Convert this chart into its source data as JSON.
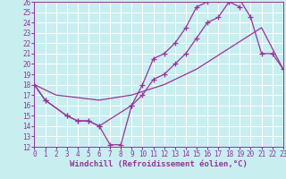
{
  "xlabel": "Windchill (Refroidissement éolien,°C)",
  "bg_color": "#c8eef0",
  "line_color": "#993399",
  "grid_color": "#ffffff",
  "xlim": [
    0,
    23
  ],
  "ylim": [
    12,
    26
  ],
  "xticks": [
    0,
    1,
    2,
    3,
    4,
    5,
    6,
    7,
    8,
    9,
    10,
    11,
    12,
    13,
    14,
    15,
    16,
    17,
    18,
    19,
    20,
    21,
    22,
    23
  ],
  "yticks": [
    12,
    13,
    14,
    15,
    16,
    17,
    18,
    19,
    20,
    21,
    22,
    23,
    24,
    25,
    26
  ],
  "curve1_x": [
    0,
    1,
    3,
    4,
    5,
    6,
    7,
    8,
    9,
    10,
    11,
    12,
    13,
    14,
    15,
    16,
    17,
    18,
    19
  ],
  "curve1_y": [
    18,
    16.5,
    15,
    14.5,
    14.5,
    14.0,
    12.2,
    12.2,
    16.0,
    18.0,
    20.5,
    21.0,
    22.0,
    23.5,
    25.5,
    26.0,
    26.2,
    26.0,
    25.5
  ],
  "curve2_x": [
    0,
    1,
    3,
    4,
    5,
    6,
    9,
    10,
    11,
    12,
    13,
    14,
    15,
    16,
    17,
    18,
    19,
    20,
    21,
    22,
    23
  ],
  "curve2_y": [
    18,
    16.5,
    15.0,
    14.5,
    14.5,
    14.0,
    16.0,
    17.0,
    18.5,
    19.0,
    20.0,
    21.0,
    22.5,
    24.0,
    24.5,
    26.0,
    26.2,
    24.5,
    21.0,
    21.0,
    19.5
  ],
  "curve3_x": [
    0,
    2,
    6,
    9,
    12,
    15,
    18,
    21,
    23
  ],
  "curve3_y": [
    18,
    17.0,
    16.5,
    17.0,
    18.0,
    19.5,
    21.5,
    23.5,
    19.5
  ],
  "marker": "+",
  "markersize": 4,
  "linewidth": 0.9,
  "tick_fontsize": 5.5,
  "label_fontsize": 6.5
}
